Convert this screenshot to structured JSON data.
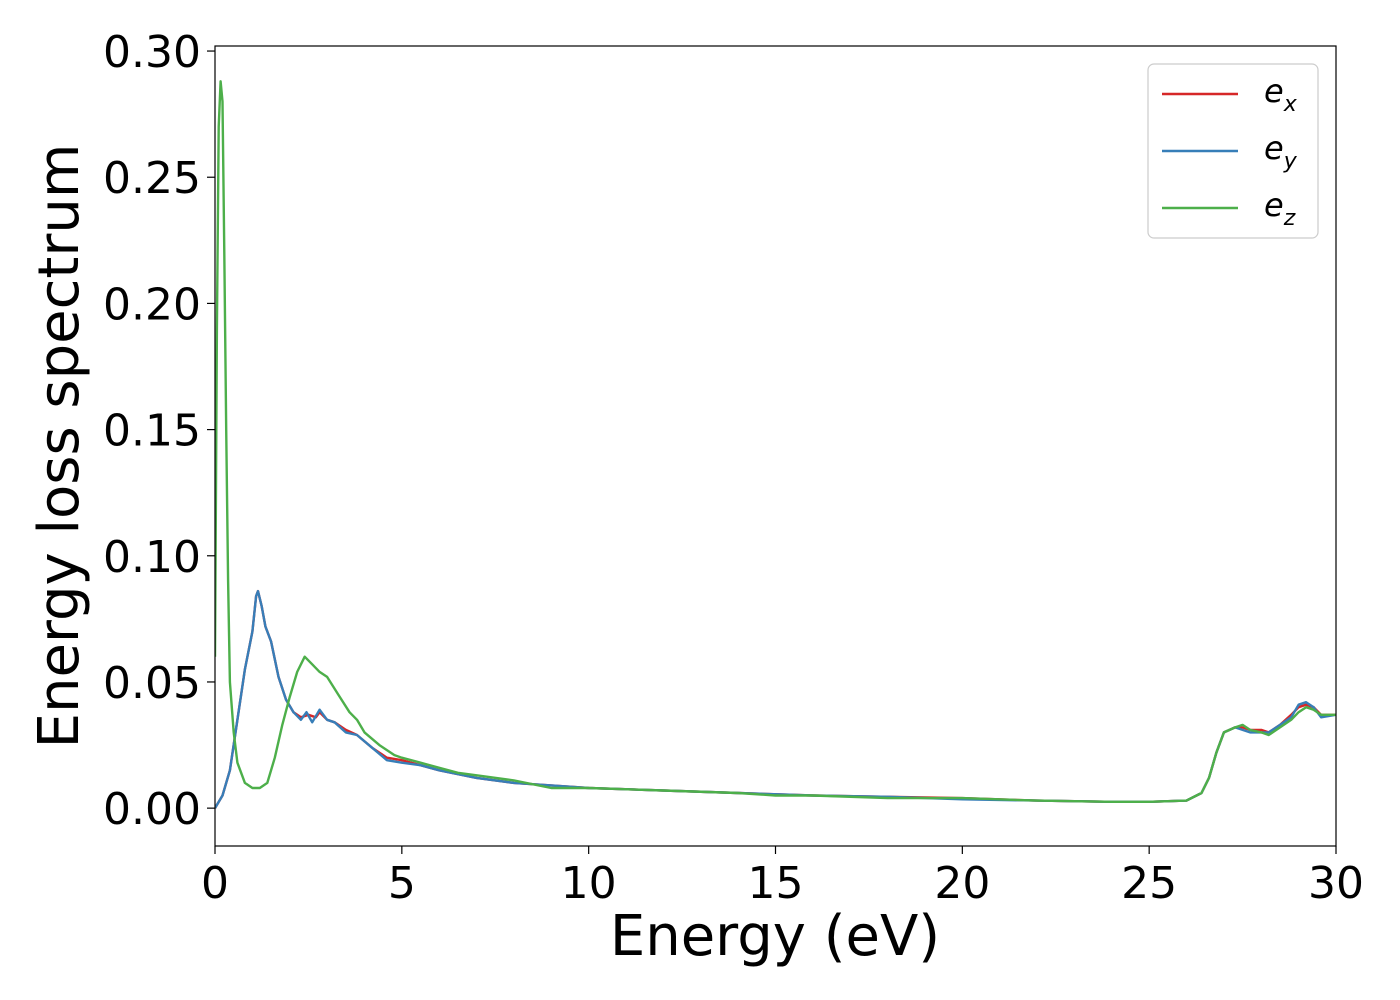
{
  "chart_data": {
    "type": "line",
    "xlabel": "Energy (eV)",
    "ylabel": "Energy loss spectrum",
    "xlim": [
      0,
      30
    ],
    "ylim": [
      -0.015,
      0.302
    ],
    "xticks": [
      0,
      5,
      10,
      15,
      20,
      25,
      30
    ],
    "xtick_labels": [
      "0",
      "5",
      "10",
      "15",
      "20",
      "25",
      "30"
    ],
    "yticks": [
      0.0,
      0.05,
      0.1,
      0.15,
      0.2,
      0.25,
      0.3
    ],
    "ytick_labels": [
      "0.00",
      "0.05",
      "0.10",
      "0.15",
      "0.20",
      "0.25",
      "0.30"
    ],
    "grid": false,
    "legend_position": "top-right",
    "series": [
      {
        "name": "e_x",
        "legend_base": "e",
        "legend_sub": "x",
        "color": "#d62728",
        "points": [
          [
            0,
            0
          ],
          [
            0.2,
            0.005
          ],
          [
            0.4,
            0.015
          ],
          [
            0.6,
            0.035
          ],
          [
            0.8,
            0.055
          ],
          [
            1.0,
            0.07
          ],
          [
            1.1,
            0.084
          ],
          [
            1.15,
            0.086
          ],
          [
            1.25,
            0.08
          ],
          [
            1.35,
            0.072
          ],
          [
            1.5,
            0.066
          ],
          [
            1.7,
            0.052
          ],
          [
            1.9,
            0.043
          ],
          [
            2.1,
            0.038
          ],
          [
            2.3,
            0.036
          ],
          [
            2.5,
            0.037
          ],
          [
            2.7,
            0.036
          ],
          [
            2.8,
            0.038
          ],
          [
            3.0,
            0.035
          ],
          [
            3.2,
            0.034
          ],
          [
            3.5,
            0.031
          ],
          [
            3.8,
            0.029
          ],
          [
            4.2,
            0.024
          ],
          [
            4.6,
            0.02
          ],
          [
            5.0,
            0.019
          ],
          [
            5.5,
            0.017
          ],
          [
            6.0,
            0.015
          ],
          [
            7.0,
            0.012
          ],
          [
            8.0,
            0.01
          ],
          [
            9.0,
            0.009
          ],
          [
            10.0,
            0.008
          ],
          [
            12.0,
            0.007
          ],
          [
            14.0,
            0.006
          ],
          [
            16.0,
            0.005
          ],
          [
            18.0,
            0.0045
          ],
          [
            20.0,
            0.004
          ],
          [
            22.0,
            0.003
          ],
          [
            24.0,
            0.0025
          ],
          [
            25.0,
            0.0025
          ],
          [
            26.0,
            0.003
          ],
          [
            26.4,
            0.006
          ],
          [
            26.6,
            0.012
          ],
          [
            26.8,
            0.022
          ],
          [
            27.0,
            0.03
          ],
          [
            27.3,
            0.032
          ],
          [
            27.5,
            0.032
          ],
          [
            27.7,
            0.031
          ],
          [
            28.0,
            0.031
          ],
          [
            28.2,
            0.03
          ],
          [
            28.5,
            0.033
          ],
          [
            28.8,
            0.037
          ],
          [
            29.0,
            0.04
          ],
          [
            29.2,
            0.041
          ],
          [
            29.4,
            0.04
          ],
          [
            29.6,
            0.037
          ],
          [
            30.0,
            0.037
          ]
        ]
      },
      {
        "name": "e_y",
        "legend_base": "e",
        "legend_sub": "y",
        "color": "#377eb8",
        "points": [
          [
            0,
            0
          ],
          [
            0.2,
            0.005
          ],
          [
            0.4,
            0.015
          ],
          [
            0.6,
            0.035
          ],
          [
            0.8,
            0.055
          ],
          [
            1.0,
            0.07
          ],
          [
            1.1,
            0.084
          ],
          [
            1.15,
            0.086
          ],
          [
            1.25,
            0.08
          ],
          [
            1.35,
            0.072
          ],
          [
            1.5,
            0.066
          ],
          [
            1.7,
            0.052
          ],
          [
            1.9,
            0.043
          ],
          [
            2.1,
            0.038
          ],
          [
            2.3,
            0.035
          ],
          [
            2.45,
            0.038
          ],
          [
            2.6,
            0.034
          ],
          [
            2.8,
            0.039
          ],
          [
            3.0,
            0.035
          ],
          [
            3.2,
            0.034
          ],
          [
            3.5,
            0.03
          ],
          [
            3.8,
            0.029
          ],
          [
            4.2,
            0.024
          ],
          [
            4.6,
            0.019
          ],
          [
            5.0,
            0.018
          ],
          [
            5.5,
            0.017
          ],
          [
            6.0,
            0.015
          ],
          [
            7.0,
            0.012
          ],
          [
            8.0,
            0.01
          ],
          [
            9.0,
            0.009
          ],
          [
            10.0,
            0.008
          ],
          [
            12.0,
            0.007
          ],
          [
            14.0,
            0.006
          ],
          [
            16.0,
            0.005
          ],
          [
            18.0,
            0.0045
          ],
          [
            20.0,
            0.0035
          ],
          [
            22.0,
            0.003
          ],
          [
            24.0,
            0.0025
          ],
          [
            25.0,
            0.0025
          ],
          [
            26.0,
            0.003
          ],
          [
            26.4,
            0.006
          ],
          [
            26.6,
            0.012
          ],
          [
            26.8,
            0.022
          ],
          [
            27.0,
            0.03
          ],
          [
            27.3,
            0.032
          ],
          [
            27.5,
            0.031
          ],
          [
            27.7,
            0.03
          ],
          [
            28.0,
            0.03
          ],
          [
            28.2,
            0.03
          ],
          [
            28.5,
            0.033
          ],
          [
            28.8,
            0.036
          ],
          [
            29.0,
            0.041
          ],
          [
            29.2,
            0.042
          ],
          [
            29.4,
            0.04
          ],
          [
            29.6,
            0.036
          ],
          [
            30.0,
            0.037
          ]
        ]
      },
      {
        "name": "e_z",
        "legend_base": "e",
        "legend_sub": "z",
        "color": "#4daf4a",
        "points": [
          [
            0,
            0.06
          ],
          [
            0.05,
            0.19
          ],
          [
            0.1,
            0.27
          ],
          [
            0.15,
            0.288
          ],
          [
            0.2,
            0.28
          ],
          [
            0.25,
            0.22
          ],
          [
            0.3,
            0.15
          ],
          [
            0.35,
            0.09
          ],
          [
            0.4,
            0.05
          ],
          [
            0.5,
            0.03
          ],
          [
            0.6,
            0.018
          ],
          [
            0.8,
            0.01
          ],
          [
            1.0,
            0.008
          ],
          [
            1.2,
            0.008
          ],
          [
            1.4,
            0.01
          ],
          [
            1.6,
            0.02
          ],
          [
            1.8,
            0.033
          ],
          [
            2.0,
            0.044
          ],
          [
            2.2,
            0.054
          ],
          [
            2.4,
            0.06
          ],
          [
            2.6,
            0.057
          ],
          [
            2.8,
            0.054
          ],
          [
            3.0,
            0.052
          ],
          [
            3.3,
            0.045
          ],
          [
            3.6,
            0.038
          ],
          [
            3.8,
            0.035
          ],
          [
            4.0,
            0.03
          ],
          [
            4.4,
            0.025
          ],
          [
            4.8,
            0.021
          ],
          [
            5.0,
            0.02
          ],
          [
            5.5,
            0.018
          ],
          [
            6.0,
            0.016
          ],
          [
            6.5,
            0.014
          ],
          [
            7.0,
            0.013
          ],
          [
            8.0,
            0.011
          ],
          [
            9.0,
            0.008
          ],
          [
            10.0,
            0.008
          ],
          [
            12.0,
            0.007
          ],
          [
            14.0,
            0.006
          ],
          [
            15.0,
            0.005
          ],
          [
            16.0,
            0.005
          ],
          [
            18.0,
            0.004
          ],
          [
            20.0,
            0.004
          ],
          [
            22.0,
            0.003
          ],
          [
            24.0,
            0.0025
          ],
          [
            25.0,
            0.0025
          ],
          [
            26.0,
            0.003
          ],
          [
            26.4,
            0.006
          ],
          [
            26.6,
            0.012
          ],
          [
            26.8,
            0.022
          ],
          [
            27.0,
            0.03
          ],
          [
            27.3,
            0.032
          ],
          [
            27.5,
            0.033
          ],
          [
            27.7,
            0.031
          ],
          [
            28.0,
            0.03
          ],
          [
            28.2,
            0.029
          ],
          [
            28.5,
            0.032
          ],
          [
            28.8,
            0.035
          ],
          [
            29.0,
            0.038
          ],
          [
            29.2,
            0.04
          ],
          [
            29.4,
            0.039
          ],
          [
            29.6,
            0.037
          ],
          [
            30.0,
            0.037
          ]
        ]
      }
    ]
  }
}
